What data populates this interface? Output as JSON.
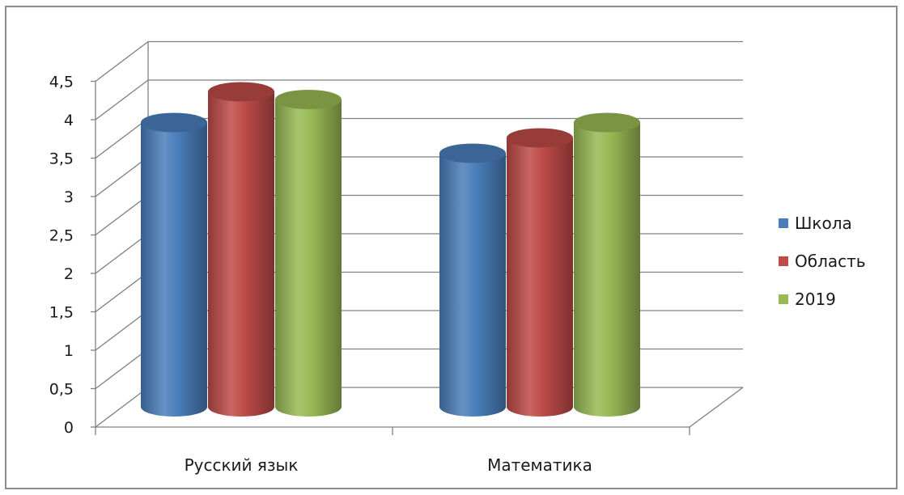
{
  "chart_data": {
    "type": "bar",
    "categories": [
      "Русский язык",
      "Математика"
    ],
    "series": [
      {
        "name": "Школа",
        "values": [
          3.7,
          3.3
        ],
        "color": "#4a7ebb"
      },
      {
        "name": "Область",
        "values": [
          4.1,
          3.5
        ],
        "color": "#be4b48"
      },
      {
        "name": "2019",
        "values": [
          4.0,
          3.7
        ],
        "color": "#98b954"
      }
    ],
    "yticks": [
      "0",
      "0,5",
      "1",
      "1,5",
      "2",
      "2,5",
      "3",
      "3,5",
      "4",
      "4,5"
    ],
    "ylim": [
      0,
      4.5
    ],
    "grid": true,
    "legend_position": "right",
    "style": "3d-cylinder"
  }
}
